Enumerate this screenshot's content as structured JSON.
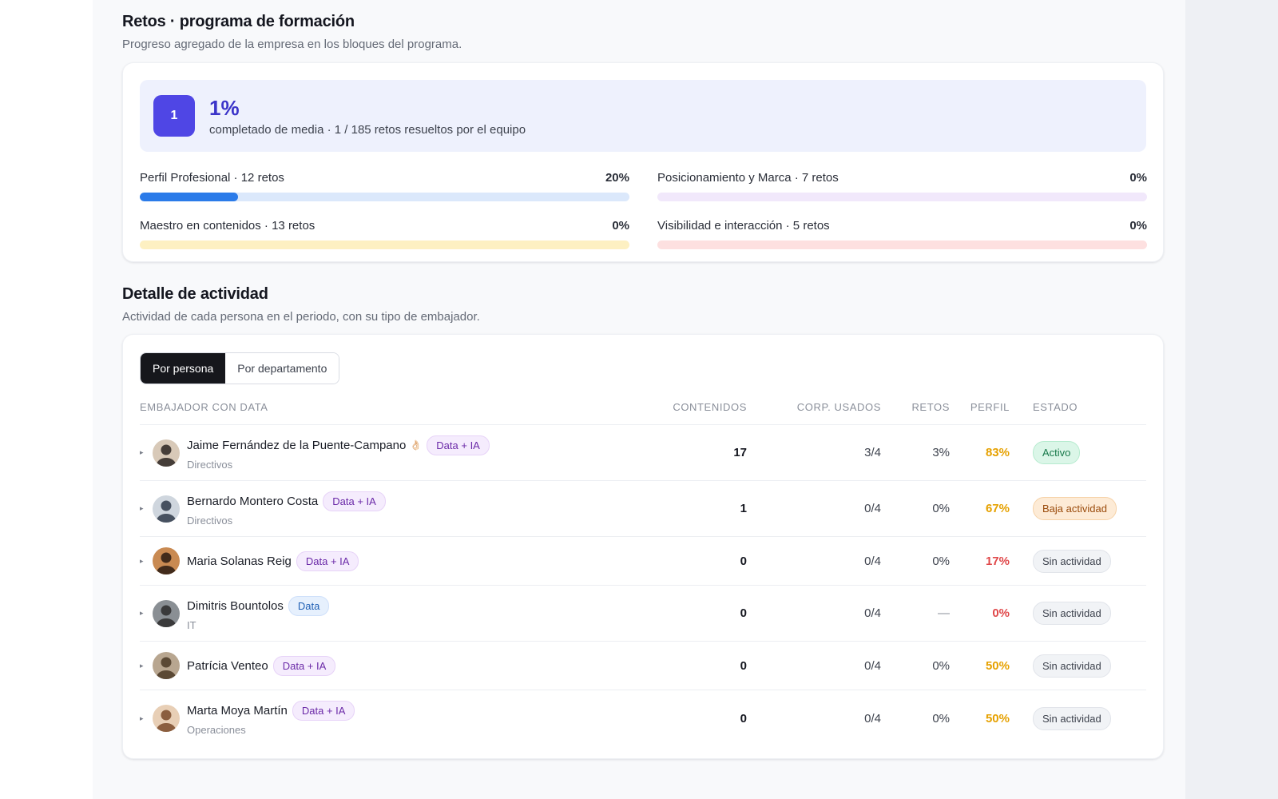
{
  "challenges": {
    "title": "Retos · programa de formación",
    "subtitle": "Progreso agregado de la empresa en los bloques del programa.",
    "summary": {
      "badge": "1",
      "percent": "1%",
      "description": "completado de media · 1 / 185 retos resueltos por el equipo"
    },
    "blocks": [
      {
        "label": "Perfil Profesional · 12 retos",
        "percent_label": "20%",
        "progress": 0.2,
        "fill_color": "#2b7be9",
        "track_color": "#dbe8fb"
      },
      {
        "label": "Posicionamiento y Marca · 7 retos",
        "percent_label": "0%",
        "progress": 0,
        "fill_color": "#b07ee6",
        "track_color": "#f1e8fb"
      },
      {
        "label": "Maestro en contenidos · 13 retos",
        "percent_label": "0%",
        "progress": 0,
        "fill_color": "#f0c23a",
        "track_color": "#fdf0c2"
      },
      {
        "label": "Visibilidad e interacción · 5 retos",
        "percent_label": "0%",
        "progress": 0,
        "fill_color": "#ef6b6b",
        "track_color": "#fde0e0"
      }
    ]
  },
  "activity": {
    "title": "Detalle de actividad",
    "subtitle": "Actividad de cada persona en el periodo, con su tipo de embajador.",
    "tabs": [
      "Por persona",
      "Por departamento"
    ],
    "active_tab": 0,
    "columns": {
      "name": "EMBAJADOR CON DATA",
      "contents": "CONTENIDOS",
      "corp": "CORP. USADOS",
      "retos": "RETOS",
      "perfil": "PERFIL",
      "estado": "ESTADO"
    },
    "rows": [
      {
        "name": "Jaime Fernández de la Puente-Campano",
        "emoji": "👌🏻",
        "tag": "Data + IA",
        "tag_kind": "dia",
        "dept": "Directivos",
        "contents": "17",
        "corp": "3/4",
        "retos": "3%",
        "perfil": "83%",
        "perfil_color": "orange",
        "status": "Activo",
        "status_kind": "active",
        "avatar_bg": "#d8c9b8",
        "avatar_fg": "#2c2521"
      },
      {
        "name": "Bernardo Montero Costa",
        "emoji": "",
        "tag": "Data + IA",
        "tag_kind": "dia",
        "dept": "Directivos",
        "contents": "1",
        "corp": "0/4",
        "retos": "0%",
        "perfil": "67%",
        "perfil_color": "orange",
        "status": "Baja actividad",
        "status_kind": "low",
        "avatar_bg": "#cfd6de",
        "avatar_fg": "#2f3a4a"
      },
      {
        "name": "Maria Solanas Reig",
        "emoji": "",
        "tag": "Data + IA",
        "tag_kind": "dia",
        "dept": "",
        "contents": "0",
        "corp": "0/4",
        "retos": "0%",
        "perfil": "17%",
        "perfil_color": "red",
        "status": "Sin actividad",
        "status_kind": "none",
        "avatar_bg": "#c98a52",
        "avatar_fg": "#2a1a12"
      },
      {
        "name": "Dimitris Bountolos",
        "emoji": "",
        "tag": "Data",
        "tag_kind": "d",
        "dept": "IT",
        "contents": "0",
        "corp": "0/4",
        "retos": "—",
        "perfil": "0%",
        "perfil_color": "red",
        "status": "Sin actividad",
        "status_kind": "none",
        "avatar_bg": "#8a8f94",
        "avatar_fg": "#2b2b2b"
      },
      {
        "name": "Patrícia Venteo",
        "emoji": "",
        "tag": "Data + IA",
        "tag_kind": "dia",
        "dept": "",
        "contents": "0",
        "corp": "0/4",
        "retos": "0%",
        "perfil": "50%",
        "perfil_color": "orange",
        "status": "Sin actividad",
        "status_kind": "none",
        "avatar_bg": "#b8a690",
        "avatar_fg": "#4a3826"
      },
      {
        "name": "Marta Moya Martín",
        "emoji": "",
        "tag": "Data + IA",
        "tag_kind": "dia",
        "dept": "Operaciones",
        "contents": "0",
        "corp": "0/4",
        "retos": "0%",
        "perfil": "50%",
        "perfil_color": "orange",
        "status": "Sin actividad",
        "status_kind": "none",
        "avatar_bg": "#e8cfb6",
        "avatar_fg": "#7a4a2a"
      }
    ]
  }
}
